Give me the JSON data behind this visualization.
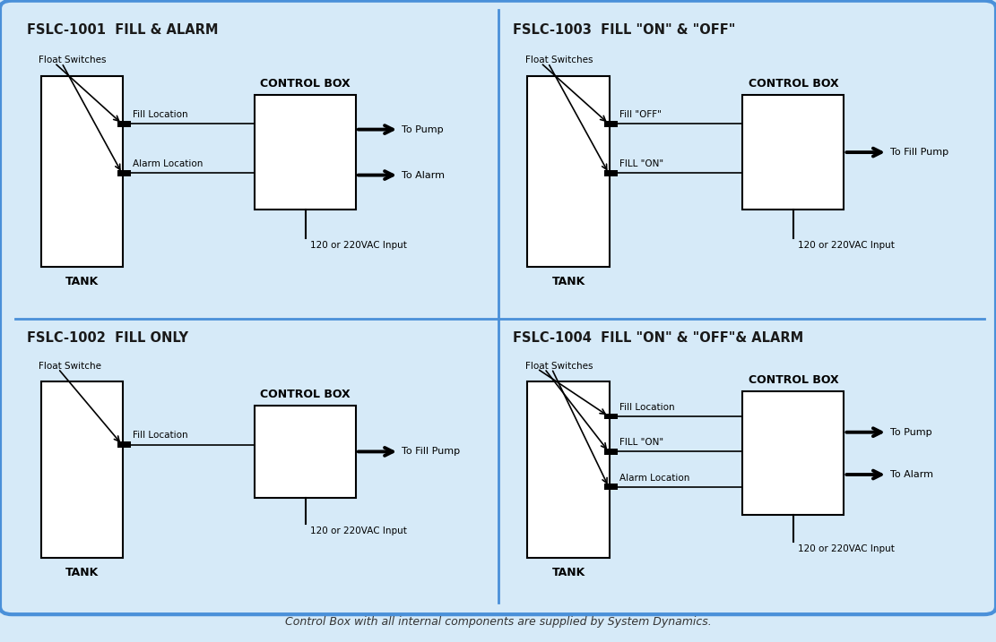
{
  "bg_color": "#ffffff",
  "outer_bg": "#d6eaf8",
  "border_color": "#4a90d9",
  "panel_bg": "#ffffff",
  "title_color": "#1a1a1a",
  "footer": "Control Box with all internal components are supplied by System Dynamics.",
  "panels": [
    {
      "title": "FSLC-1001  FILL & ALARM",
      "float_label": "Float Switches",
      "power_label": "120 or 220VAC Input",
      "wires": [
        {
          "label": "Fill Location",
          "output": "To Pump"
        },
        {
          "label": "Alarm Location",
          "output": "To Alarm"
        }
      ],
      "float_count": 2
    },
    {
      "title": "FSLC-1003  FILL \"ON\" & \"OFF\"",
      "float_label": "Float Switches",
      "power_label": "120 or 220VAC Input",
      "wires": [
        {
          "label": "Fill \"OFF\"",
          "output": "To Fill Pump"
        },
        {
          "label": "FILL \"ON\"",
          "output": null
        }
      ],
      "float_count": 2
    },
    {
      "title": "FSLC-1002  FILL ONLY",
      "float_label": "Float Switche",
      "power_label": "120 or 220VAC Input",
      "wires": [
        {
          "label": "Fill Location",
          "output": "To Fill Pump"
        }
      ],
      "float_count": 1
    },
    {
      "title": "FSLC-1004  FILL \"ON\" & \"OFF\"& ALARM",
      "float_label": "Float Switches",
      "power_label": "120 or 220VAC Input",
      "wires": [
        {
          "label": "Fill Location",
          "output": "To Pump"
        },
        {
          "label": "FILL \"ON\"",
          "output": "To Alarm"
        },
        {
          "label": "Alarm Location",
          "output": null
        }
      ],
      "float_count": 3
    }
  ]
}
